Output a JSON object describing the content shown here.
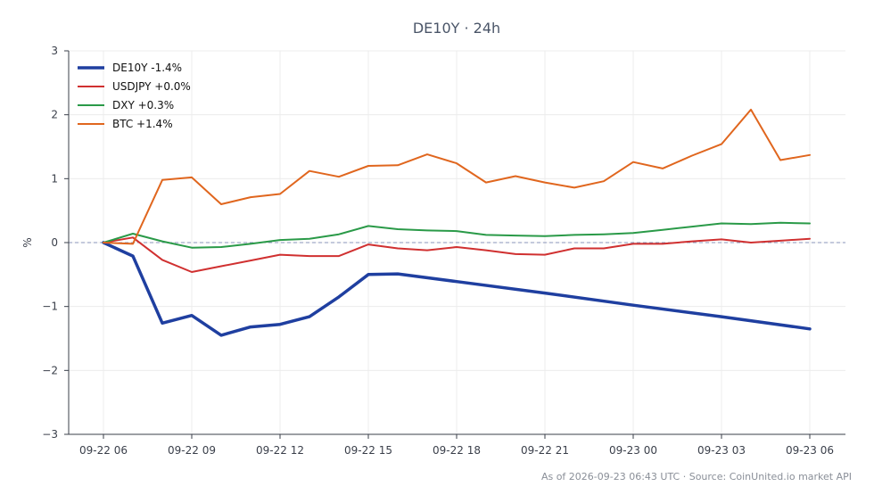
{
  "chart_data": {
    "type": "line",
    "title": "DE10Y · 24h",
    "xlabel": "",
    "ylabel": "%",
    "ylim": [
      -3,
      3
    ],
    "yticks": [
      3,
      2,
      1,
      0,
      -1,
      -2,
      -3
    ],
    "ytick_labels": [
      "3",
      "2",
      "1",
      "0",
      "−1",
      "−2",
      "−3"
    ],
    "xtick_labels": [
      "09-22 06",
      "09-22 09",
      "09-22 12",
      "09-22 15",
      "09-22 18",
      "09-22 21",
      "09-23 00",
      "09-23 03",
      "09-23 06"
    ],
    "x": [
      "09-22 06",
      "09-22 07",
      "09-22 08",
      "09-22 09",
      "09-22 10",
      "09-22 11",
      "09-22 12",
      "09-22 13",
      "09-22 14",
      "09-22 15",
      "09-22 16",
      "09-22 17",
      "09-22 18",
      "09-22 19",
      "09-22 20",
      "09-22 21",
      "09-22 22",
      "09-22 23",
      "09-23 00",
      "09-23 01",
      "09-23 02",
      "09-23 03",
      "09-23 04",
      "09-23 05",
      "09-23 06"
    ],
    "grid": true,
    "zero_line": true,
    "legend_position": "top-left",
    "series": [
      {
        "name": "DE10Y -1.4%",
        "color": "#1f3fa0",
        "width": 3.5,
        "values": [
          0.0,
          -0.21,
          -1.26,
          -1.14,
          -1.45,
          -1.32,
          -1.28,
          -1.16,
          -0.85,
          -0.5,
          -0.49,
          null,
          -0.61,
          null,
          null,
          -0.79,
          null,
          null,
          -0.98,
          null,
          null,
          -1.16,
          null,
          null,
          -1.35
        ]
      },
      {
        "name": "USDJPY +0.0%",
        "color": "#d03030",
        "width": 2,
        "values": [
          0.0,
          0.08,
          -0.27,
          -0.46,
          -0.37,
          -0.28,
          -0.19,
          -0.21,
          -0.21,
          -0.03,
          -0.09,
          -0.12,
          -0.07,
          -0.12,
          -0.18,
          -0.19,
          -0.09,
          -0.09,
          -0.02,
          -0.02,
          0.02,
          0.05,
          0.0,
          0.03,
          0.06
        ]
      },
      {
        "name": "DXY +0.3%",
        "color": "#2a9a48",
        "width": 2,
        "values": [
          0.0,
          0.14,
          0.02,
          -0.08,
          -0.07,
          -0.02,
          0.04,
          0.06,
          0.13,
          0.26,
          0.21,
          0.19,
          0.18,
          0.12,
          0.11,
          0.1,
          0.12,
          0.13,
          0.15,
          0.2,
          0.25,
          0.3,
          0.29,
          0.31,
          0.3
        ]
      },
      {
        "name": "BTC +1.4%",
        "color": "#e0661e",
        "width": 2,
        "values": [
          0.0,
          -0.02,
          0.98,
          1.02,
          0.6,
          0.71,
          0.76,
          1.12,
          1.03,
          1.2,
          1.21,
          1.38,
          1.24,
          0.94,
          1.04,
          0.94,
          0.86,
          0.96,
          1.26,
          1.16,
          1.36,
          1.54,
          2.08,
          1.29,
          1.37
        ]
      }
    ]
  },
  "footer": "As of 2026-09-23 06:43 UTC · Source: CoinUnited.io market API"
}
